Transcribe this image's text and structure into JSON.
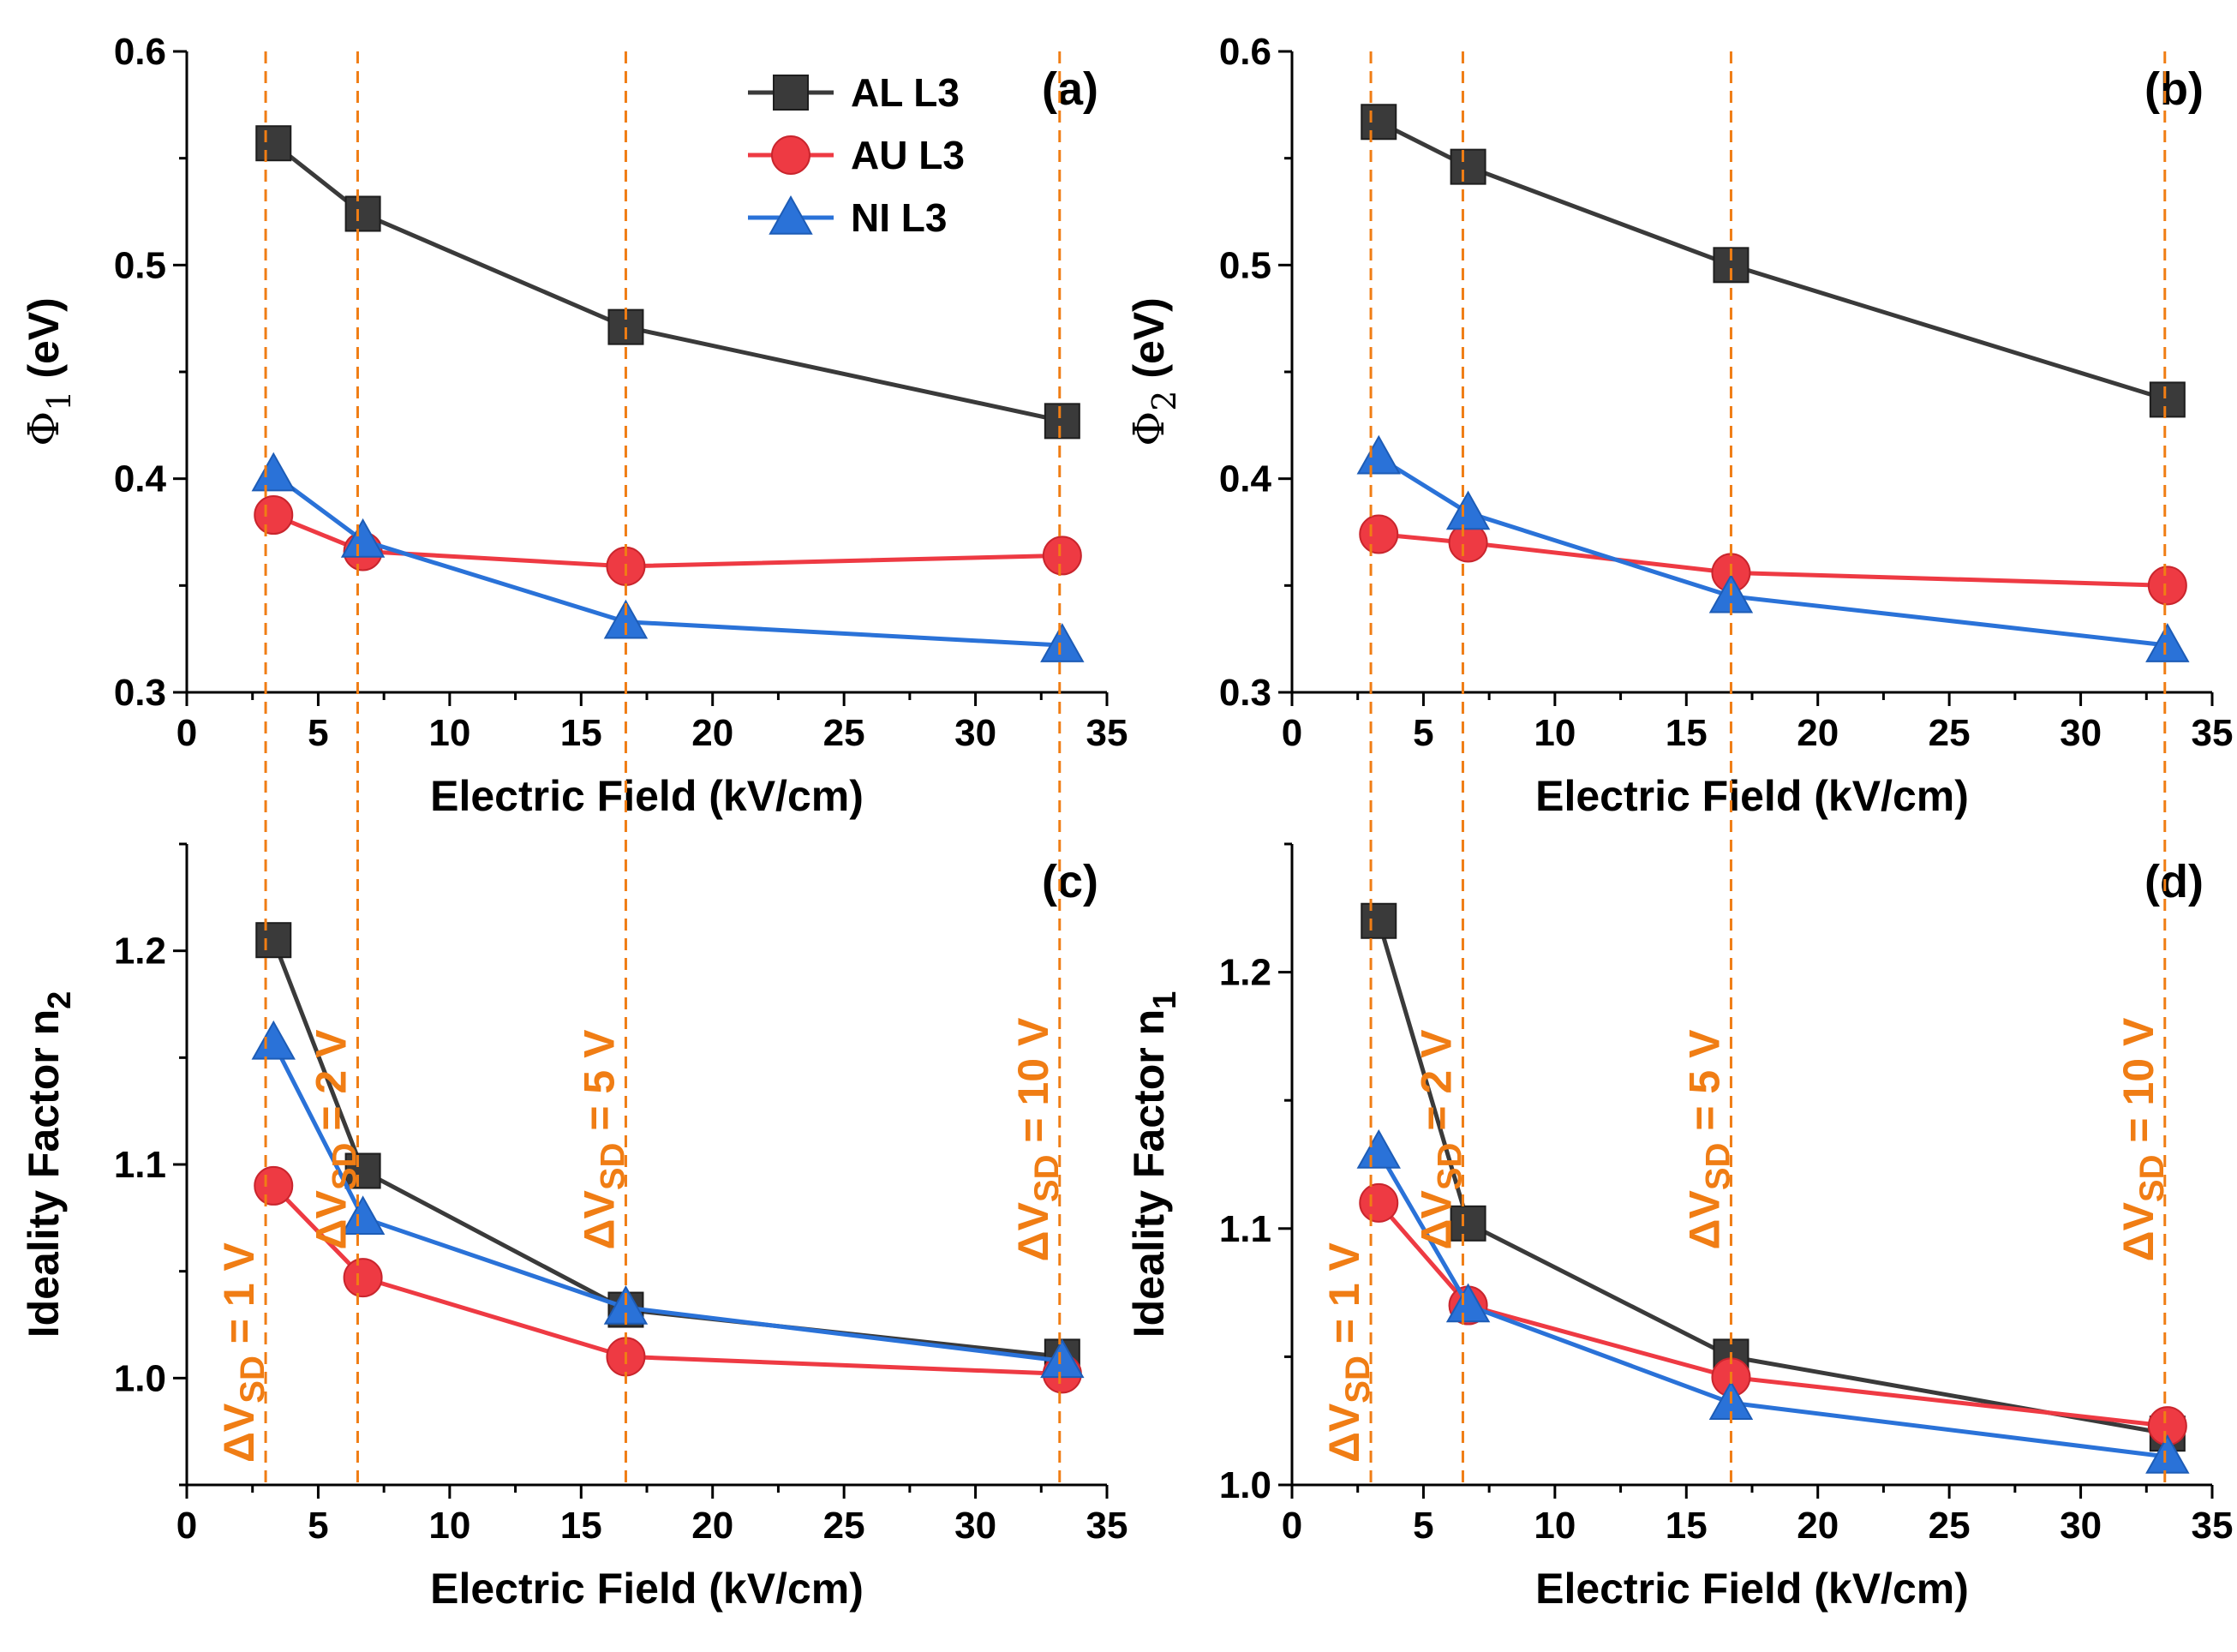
{
  "colors": {
    "AL L3": "#3a3a3a",
    "AU L3": "#ee3a43",
    "NI L3": "#2a72d8",
    "vline": "#f07d14",
    "axis": "#000000"
  },
  "figure": {
    "vsd_lines_x": [
      3.0,
      6.5,
      16.7,
      33.2
    ],
    "vsd_labels": [
      {
        "x": 3.0,
        "prefix": "ΔV",
        "sub": "SD",
        "suffix": " = 1 V"
      },
      {
        "x": 6.5,
        "prefix": "ΔV",
        "sub": "SD",
        "suffix": " = 2 V"
      },
      {
        "x": 16.7,
        "prefix": "ΔV",
        "sub": "SD",
        "suffix": " = 5 V"
      },
      {
        "x": 33.2,
        "prefix": "ΔV",
        "sub": "SD",
        "suffix": " = 10 V"
      }
    ]
  },
  "chart_data": [
    {
      "panel": "(a)",
      "type": "line",
      "xlabel": "Electric Field (kV/cm)",
      "ylabel": {
        "symbol": "Φ",
        "sub": "1",
        "unit": " (eV)"
      },
      "xlim": [
        0,
        35
      ],
      "ylim": [
        0.3,
        0.6
      ],
      "xticks": [
        0,
        5,
        10,
        15,
        20,
        25,
        30,
        35
      ],
      "yticks": [
        0.3,
        0.4,
        0.5,
        0.6
      ],
      "ytick_labels": [
        "0.3",
        "0.4",
        "0.5",
        "0.6"
      ],
      "legend": {
        "position": "top-center",
        "entries": [
          "AL L3",
          "AU L3",
          "NI L3"
        ]
      },
      "series": [
        {
          "name": "AL L3",
          "marker": "square",
          "x": [
            3.3,
            6.7,
            16.7,
            33.3
          ],
          "y": [
            0.557,
            0.524,
            0.471,
            0.427
          ]
        },
        {
          "name": "AU L3",
          "marker": "circle",
          "x": [
            3.3,
            6.7,
            16.7,
            33.3
          ],
          "y": [
            0.383,
            0.366,
            0.359,
            0.364
          ]
        },
        {
          "name": "NI L3",
          "marker": "triangle",
          "x": [
            3.3,
            6.7,
            16.7,
            33.3
          ],
          "y": [
            0.402,
            0.371,
            0.333,
            0.322
          ]
        }
      ]
    },
    {
      "panel": "(b)",
      "type": "line",
      "xlabel": "Electric Field (kV/cm)",
      "ylabel": {
        "symbol": "Φ",
        "sub": "2",
        "unit": " (eV)"
      },
      "xlim": [
        0,
        35
      ],
      "ylim": [
        0.3,
        0.6
      ],
      "xticks": [
        0,
        5,
        10,
        15,
        20,
        25,
        30,
        35
      ],
      "yticks": [
        0.3,
        0.4,
        0.5,
        0.6
      ],
      "ytick_labels": [
        "0.3",
        "0.4",
        "0.5",
        "0.6"
      ],
      "series": [
        {
          "name": "AL L3",
          "marker": "square",
          "x": [
            3.3,
            6.7,
            16.7,
            33.3
          ],
          "y": [
            0.567,
            0.546,
            0.5,
            0.437
          ]
        },
        {
          "name": "AU L3",
          "marker": "circle",
          "x": [
            3.3,
            6.7,
            16.7,
            33.3
          ],
          "y": [
            0.374,
            0.37,
            0.356,
            0.35
          ]
        },
        {
          "name": "NI L3",
          "marker": "triangle",
          "x": [
            3.3,
            6.7,
            16.7,
            33.3
          ],
          "y": [
            0.41,
            0.384,
            0.345,
            0.322
          ]
        }
      ]
    },
    {
      "panel": "(c)",
      "type": "line",
      "xlabel": "Electric Field (kV/cm)",
      "ylabel": {
        "symbol": "Ideality Factor n",
        "sub": "2",
        "unit": ""
      },
      "xlim": [
        0,
        35
      ],
      "ylim": [
        0.95,
        1.25
      ],
      "xticks": [
        0,
        5,
        10,
        15,
        20,
        25,
        30,
        35
      ],
      "yticks": [
        1.0,
        1.1,
        1.2
      ],
      "ytick_labels": [
        "1.0",
        "1.1",
        "1.2"
      ],
      "series": [
        {
          "name": "AL L3",
          "marker": "square",
          "x": [
            3.3,
            6.7,
            16.7,
            33.3
          ],
          "y": [
            1.205,
            1.097,
            1.032,
            1.01
          ]
        },
        {
          "name": "AU L3",
          "marker": "circle",
          "x": [
            3.3,
            6.7,
            16.7,
            33.3
          ],
          "y": [
            1.09,
            1.047,
            1.01,
            1.002
          ]
        },
        {
          "name": "NI L3",
          "marker": "triangle",
          "x": [
            3.3,
            6.7,
            16.7,
            33.3
          ],
          "y": [
            1.157,
            1.075,
            1.033,
            1.008
          ]
        }
      ]
    },
    {
      "panel": "(d)",
      "type": "line",
      "xlabel": "Electric Field (kV/cm)",
      "ylabel": {
        "symbol": "Ideality Factor n",
        "sub": "1",
        "unit": ""
      },
      "xlim": [
        0,
        35
      ],
      "ylim": [
        1.0,
        1.25
      ],
      "xticks": [
        0,
        5,
        10,
        15,
        20,
        25,
        30,
        35
      ],
      "yticks": [
        1.0,
        1.1,
        1.2
      ],
      "ytick_labels": [
        "1.0",
        "1.1",
        "1.2"
      ],
      "series": [
        {
          "name": "AL L3",
          "marker": "square",
          "x": [
            3.3,
            6.7,
            16.7,
            33.3
          ],
          "y": [
            1.22,
            1.102,
            1.05,
            1.02
          ]
        },
        {
          "name": "AU L3",
          "marker": "circle",
          "x": [
            3.3,
            6.7,
            16.7,
            33.3
          ],
          "y": [
            1.11,
            1.07,
            1.042,
            1.023
          ]
        },
        {
          "name": "NI L3",
          "marker": "triangle",
          "x": [
            3.3,
            6.7,
            16.7,
            33.3
          ],
          "y": [
            1.13,
            1.07,
            1.032,
            1.011
          ]
        }
      ]
    }
  ]
}
